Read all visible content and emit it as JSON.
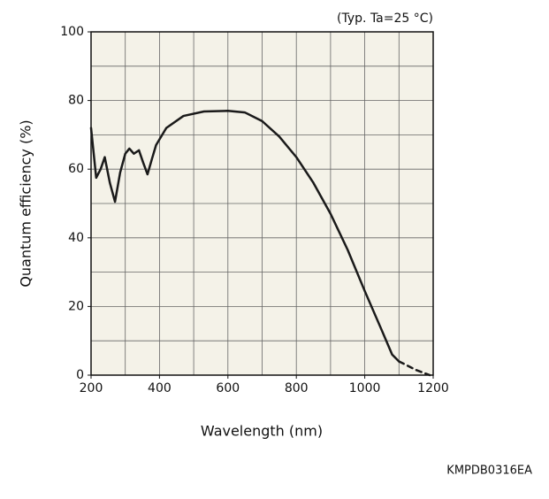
{
  "chart_data": {
    "type": "line",
    "annotation": "(Typ. Ta=25 °C)",
    "code": "KMPDB0316EA",
    "x_label": "Wavelength (nm)",
    "y_label": "Quantum efficiency (%)",
    "x": [
      200,
      215,
      228,
      240,
      255,
      270,
      285,
      300,
      312,
      325,
      340,
      352,
      365,
      378,
      390,
      420,
      470,
      530,
      600,
      650,
      700,
      750,
      800,
      850,
      900,
      950,
      1000,
      1050,
      1080,
      1100,
      1150,
      1190
    ],
    "series": [
      {
        "color": "#1a1a1a",
        "line_style": "solid",
        "values": [
          72,
          57.5,
          60,
          63.5,
          56,
          50.5,
          59,
          64.5,
          66,
          64.5,
          65.5,
          62,
          58.5,
          63,
          67,
          72,
          75.5,
          76.8,
          77,
          76.5,
          74,
          69.5,
          63.5,
          56,
          47,
          36.5,
          24.5,
          13,
          6,
          4,
          null,
          null
        ]
      },
      {
        "color": "#1a1a1a",
        "line_style": "dashed",
        "values": [
          null,
          null,
          null,
          null,
          null,
          null,
          null,
          null,
          null,
          null,
          null,
          null,
          null,
          null,
          null,
          null,
          null,
          null,
          null,
          null,
          null,
          null,
          null,
          null,
          null,
          null,
          null,
          null,
          null,
          4,
          1.5,
          0
        ]
      }
    ],
    "xlim": [
      200,
      1200
    ],
    "ylim": [
      0,
      100
    ],
    "xticks": [
      200,
      400,
      600,
      800,
      1000,
      1200
    ],
    "yticks": [
      0,
      20,
      40,
      60,
      80,
      100
    ],
    "grid_x_step": 100,
    "grid_y_step": 10,
    "plot_background": "#f4f2e8"
  }
}
